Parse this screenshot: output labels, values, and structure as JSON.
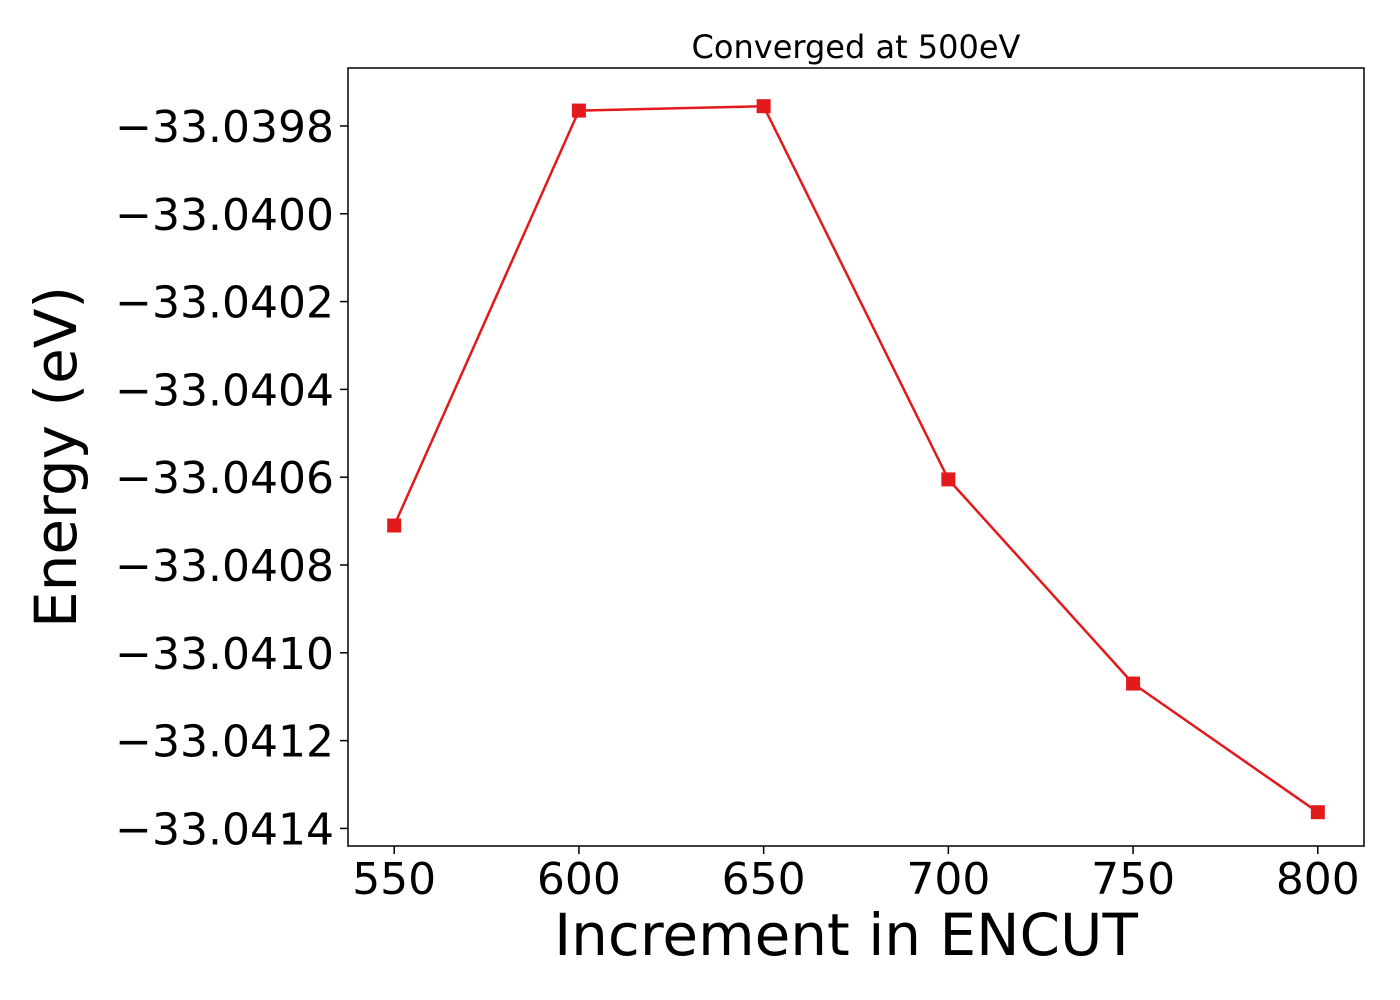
{
  "chart_data": {
    "type": "line",
    "title": "Converged at 500eV",
    "xlabel": "Increment in ENCUT",
    "ylabel": "Energy (eV)",
    "x": [
      550,
      600,
      650,
      700,
      750,
      800
    ],
    "series": [
      {
        "values": [
          -33.04071,
          -33.039765,
          -33.039755,
          -33.040605,
          -33.04107,
          -33.041363
        ],
        "color": "#e31a1c",
        "marker": "square"
      }
    ],
    "xticks": [
      550,
      600,
      650,
      700,
      750,
      800
    ],
    "xtick_labels": [
      "550",
      "600",
      "650",
      "700",
      "750",
      "800"
    ],
    "yticks": [
      -33.0398,
      -33.04,
      -33.0402,
      -33.0404,
      -33.0406,
      -33.0408,
      -33.041,
      -33.0412,
      -33.0414
    ],
    "ytick_labels": [
      "−33.0398",
      "−33.0400",
      "−33.0402",
      "−33.0404",
      "−33.0406",
      "−33.0408",
      "−33.0410",
      "−33.0412",
      "−33.0414"
    ],
    "xlim": [
      537.5,
      812.5
    ],
    "ylim": [
      -33.04144,
      -33.039668
    ],
    "grid": false,
    "legend": false
  }
}
